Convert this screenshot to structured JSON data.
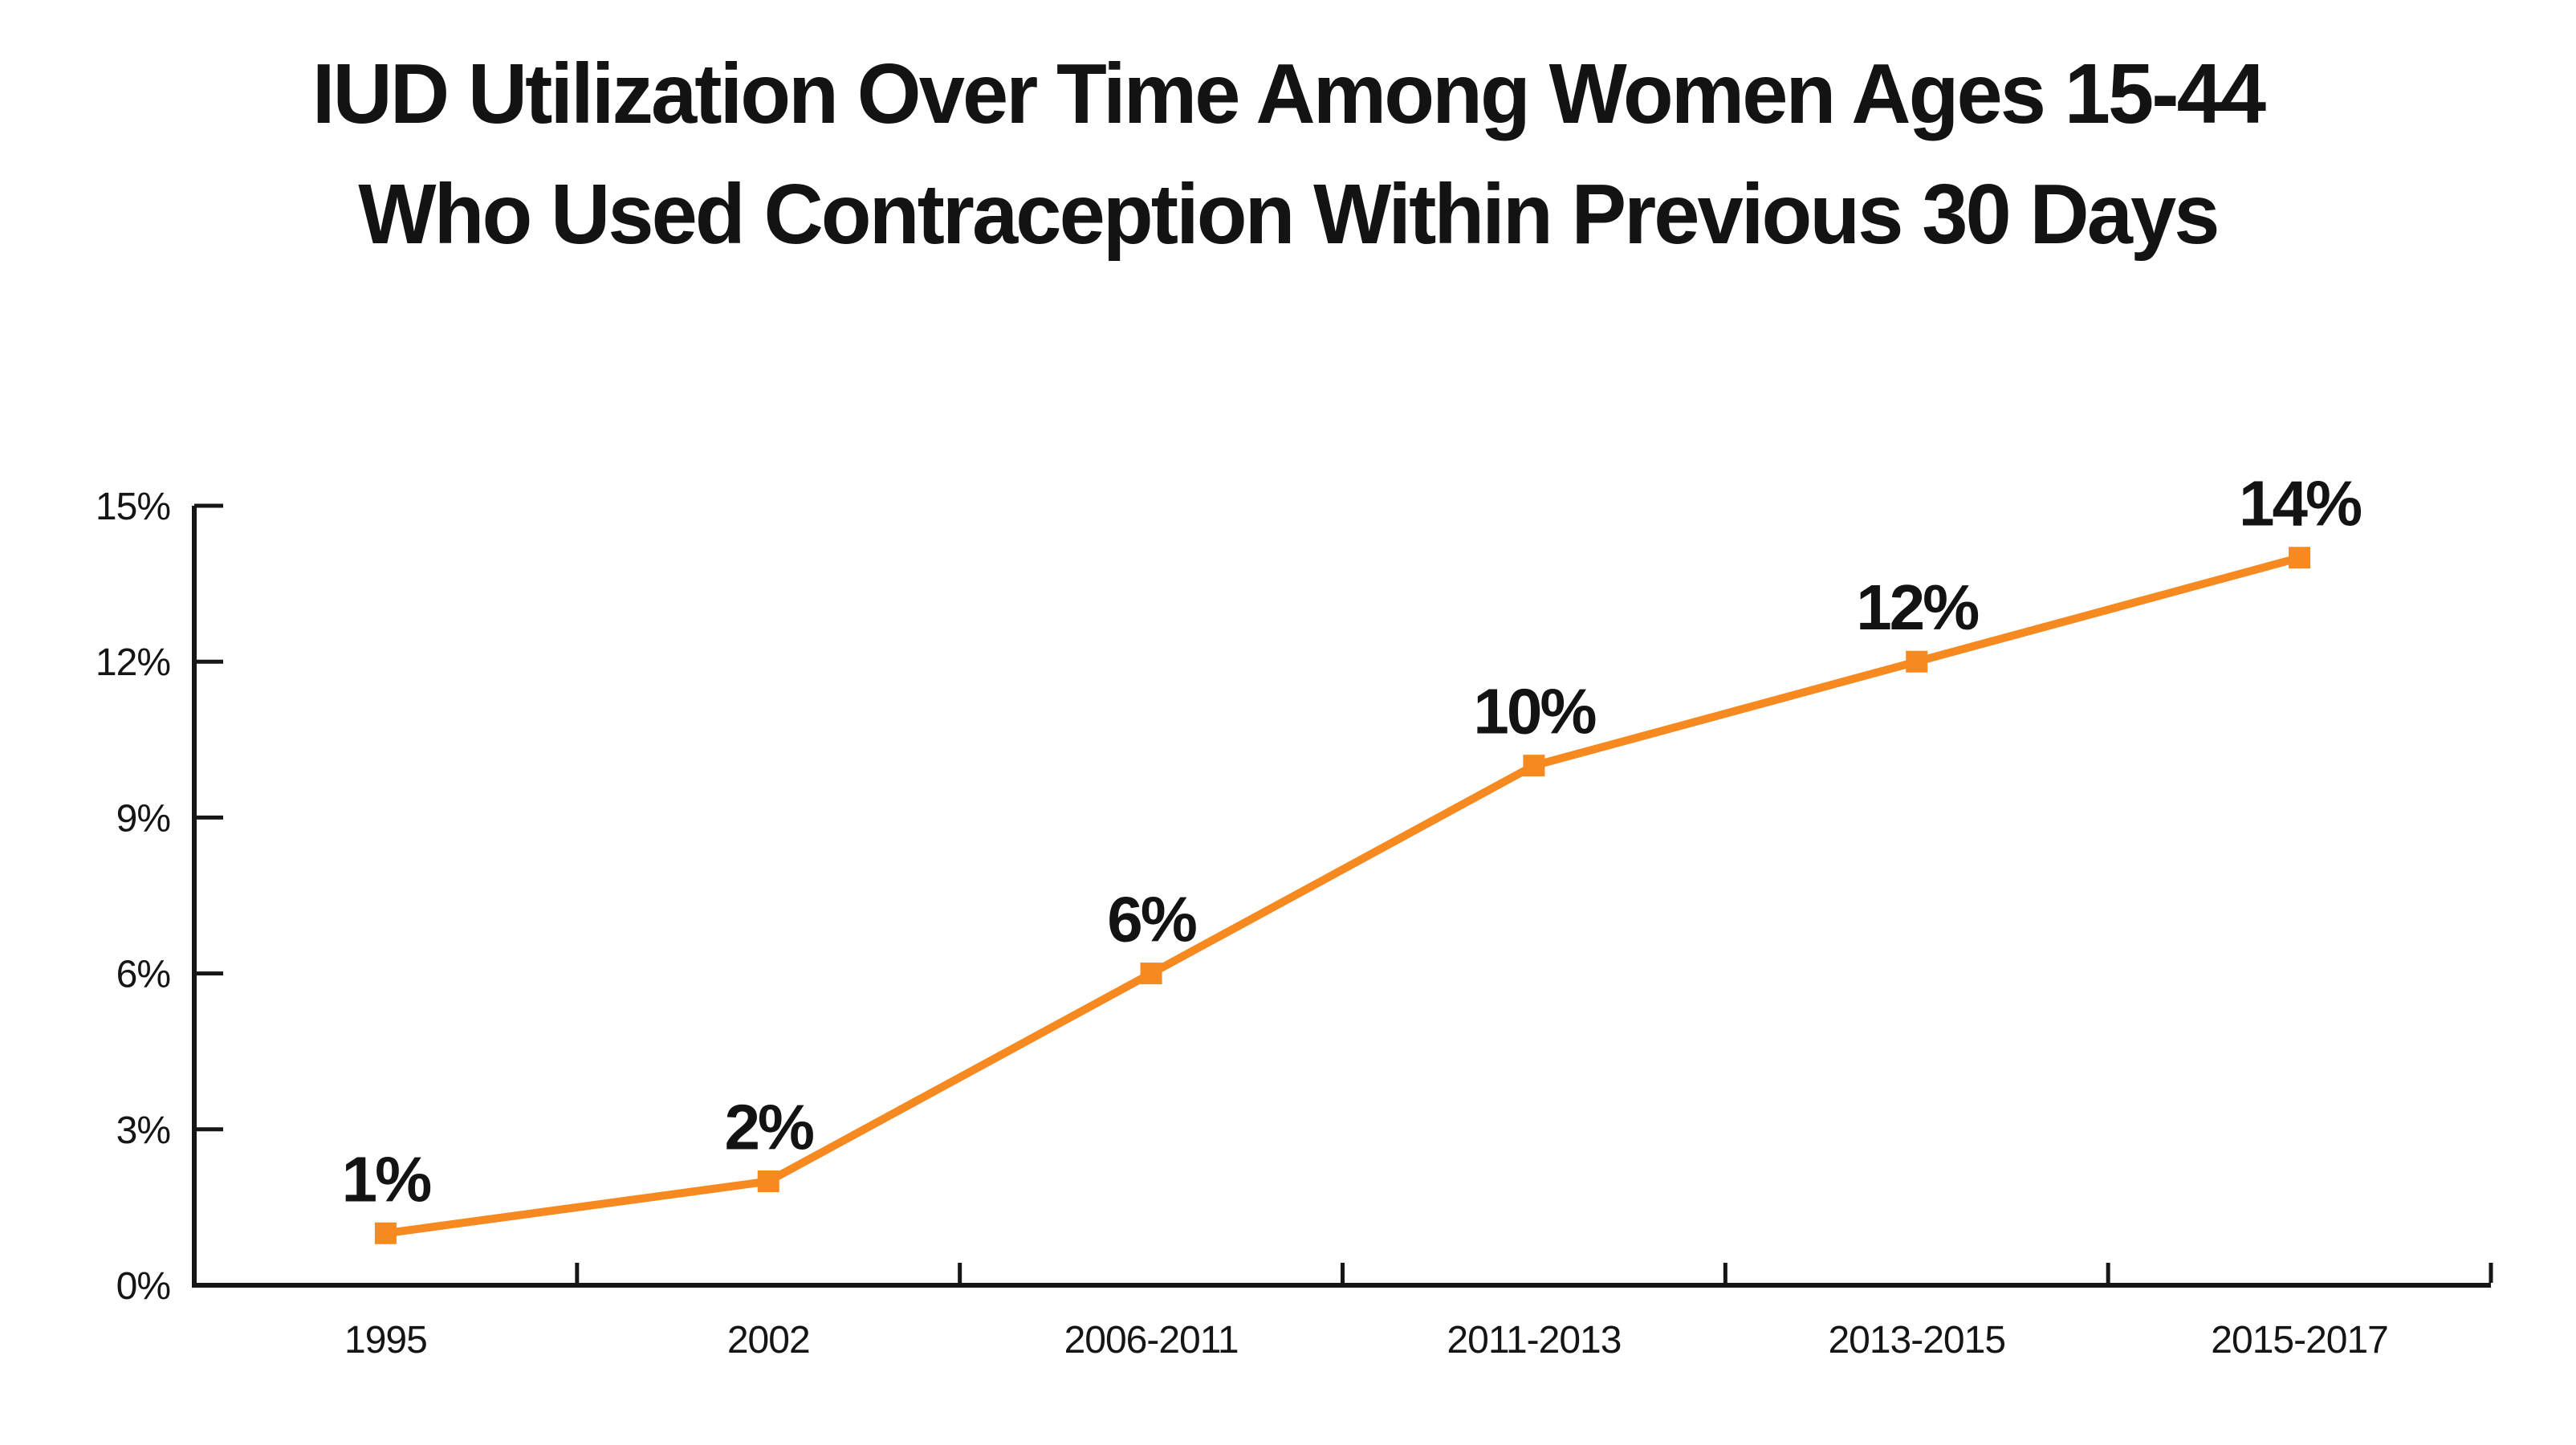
{
  "title": {
    "line1": "IUD Utilization Over Time Among Women Ages 15-44",
    "line2": "Who Used Contraception Within Previous 30 Days"
  },
  "chart_data": {
    "type": "line",
    "title": "IUD Utilization Over Time Among Women Ages 15-44 Who Used Contraception Within Previous 30 Days",
    "categories": [
      "1995",
      "2002",
      "2006-2011",
      "2011-2013",
      "2013-2015",
      "2015-2017"
    ],
    "values": [
      1,
      2,
      6,
      10,
      12,
      14
    ],
    "data_labels": [
      "1%",
      "2%",
      "6%",
      "10%",
      "12%",
      "14%"
    ],
    "y_tick_values": [
      0,
      3,
      6,
      9,
      12,
      15
    ],
    "y_tick_labels": [
      "0%",
      "3%",
      "6%",
      "9%",
      "12%",
      "15%"
    ],
    "ylim": [
      0,
      15
    ],
    "xlabel": "",
    "ylabel": "",
    "grid": false,
    "legend": "none",
    "marker_shape": "square",
    "series_color": "#F6891F",
    "axis_color": "#161616",
    "label_color": "#141313"
  }
}
